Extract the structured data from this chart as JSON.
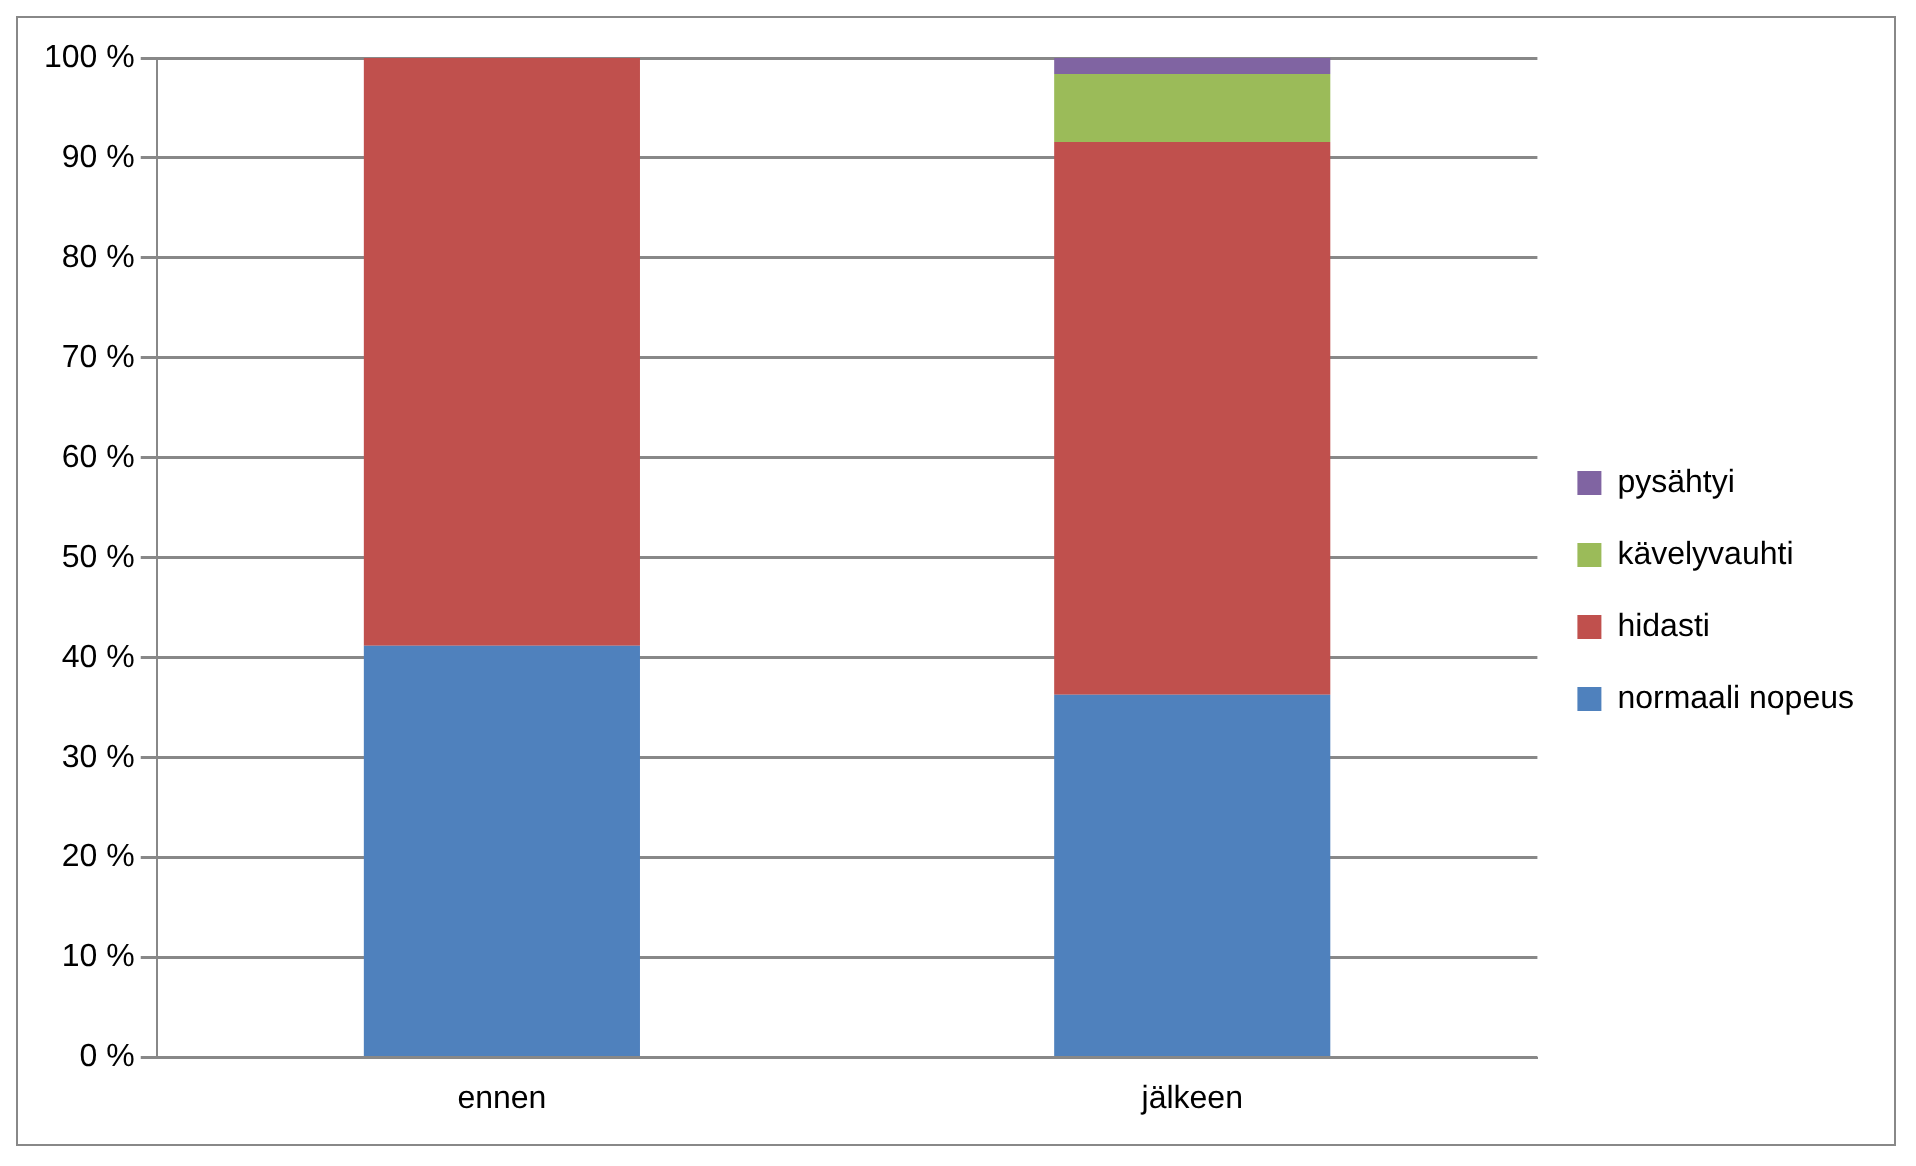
{
  "chart_data": {
    "type": "bar",
    "stacked": true,
    "categories": [
      "ennen",
      "jälkeen"
    ],
    "series": [
      {
        "name": "normaali nopeus",
        "color": "#4f81bd",
        "values": [
          41.2,
          36.3
        ]
      },
      {
        "name": "hidasti",
        "color": "#c0504d",
        "values": [
          58.8,
          55.3
        ]
      },
      {
        "name": "kävelyvauhti",
        "color": "#9bbb59",
        "values": [
          0,
          6.8
        ]
      },
      {
        "name": "pysähtyi",
        "color": "#8064a2",
        "values": [
          0,
          1.6
        ]
      }
    ],
    "ylim": [
      0,
      100
    ],
    "yticks": [
      {
        "value": 0,
        "label": "0 %"
      },
      {
        "value": 10,
        "label": "10 %"
      },
      {
        "value": 20,
        "label": "20 %"
      },
      {
        "value": 30,
        "label": "30 %"
      },
      {
        "value": 40,
        "label": "40 %"
      },
      {
        "value": 50,
        "label": "50 %"
      },
      {
        "value": 60,
        "label": "60 %"
      },
      {
        "value": 70,
        "label": "70 %"
      },
      {
        "value": 80,
        "label": "80 %"
      },
      {
        "value": 90,
        "label": "90 %"
      },
      {
        "value": 100,
        "label": "100 %"
      }
    ],
    "grid": "y",
    "legend": "right"
  }
}
